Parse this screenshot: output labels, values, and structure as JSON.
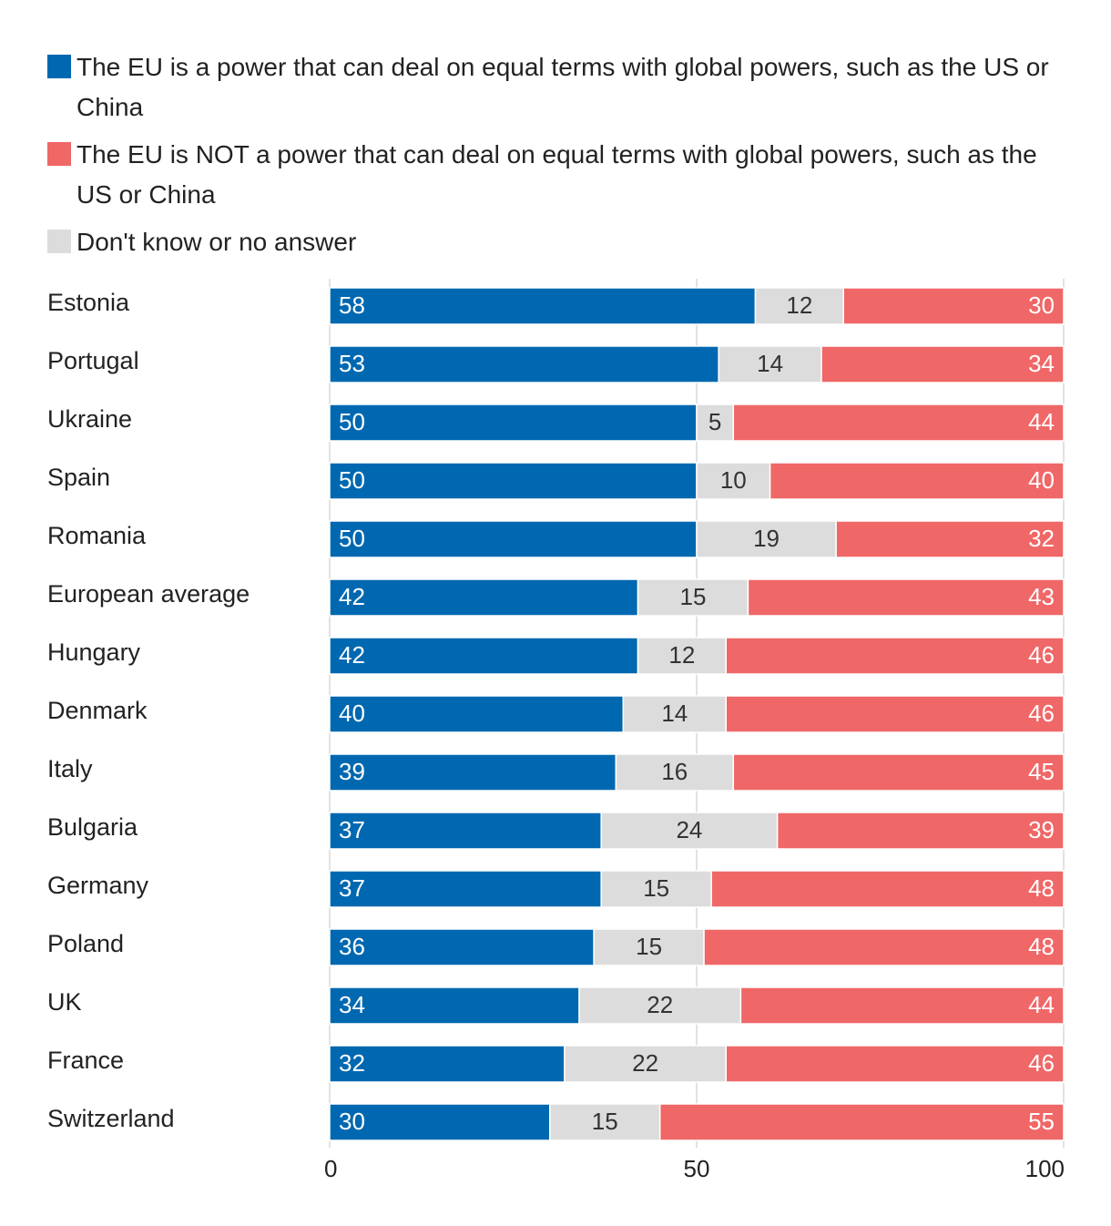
{
  "chart_data": {
    "type": "bar",
    "orientation": "horizontal",
    "stacked": true,
    "title": "",
    "xlabel": "",
    "ylabel": "",
    "xlim": [
      0,
      100
    ],
    "x_ticks": [
      "0",
      "50",
      "100"
    ],
    "grid": true,
    "legend_position": "top",
    "categories": [
      "Estonia",
      "Portugal",
      "Ukraine",
      "Spain",
      "Romania",
      "European average",
      "Hungary",
      "Denmark",
      "Italy",
      "Bulgaria",
      "Germany",
      "Poland",
      "UK",
      "France",
      "Switzerland"
    ],
    "series": [
      {
        "name": "The EU is a power that can deal on equal terms with global powers, such as the US or China",
        "color": "#0068b0",
        "label_color": "#ffffff",
        "values": [
          58,
          53,
          50,
          50,
          50,
          42,
          42,
          40,
          39,
          37,
          37,
          36,
          34,
          32,
          30
        ]
      },
      {
        "name": "Don't know or no answer",
        "color": "#dcdcdc",
        "label_color": "#333333",
        "values": [
          12,
          14,
          5,
          10,
          19,
          15,
          12,
          14,
          16,
          24,
          15,
          15,
          22,
          22,
          15
        ]
      },
      {
        "name": "The EU is NOT a power that can deal on equal terms with global powers, such as the US or China",
        "color": "#f06767",
        "label_color": "#ffffff",
        "values": [
          30,
          34,
          44,
          40,
          32,
          43,
          46,
          46,
          45,
          39,
          48,
          48,
          44,
          46,
          55
        ]
      }
    ],
    "legend_order": [
      0,
      2,
      1
    ]
  }
}
